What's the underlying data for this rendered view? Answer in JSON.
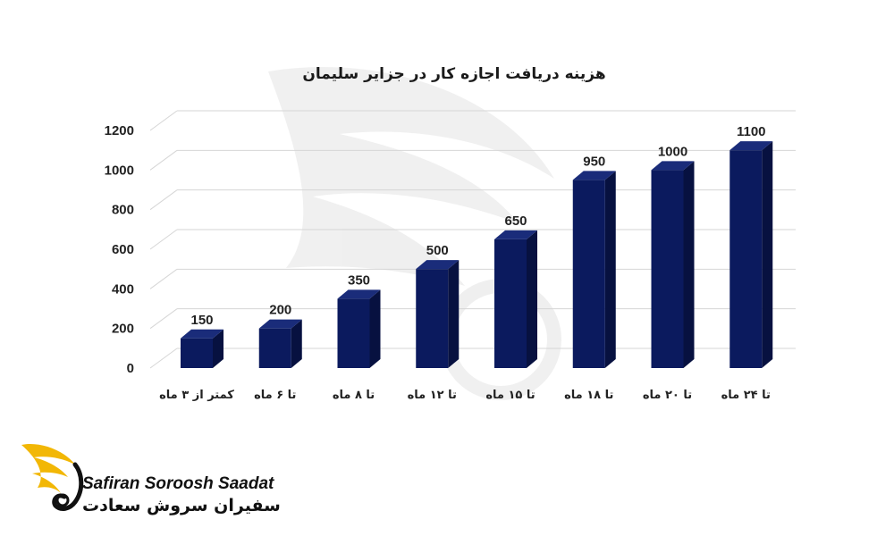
{
  "chart_data": {
    "type": "bar",
    "title": "هزینه دریافت اجازه کار در جزایر سلیمان",
    "categories": [
      "کمتر از ۳ ماه",
      "تا ۶ ماه",
      "تا ۸ ماه",
      "تا ۱۲ ماه",
      "تا ۱۵ ماه",
      "تا ۱۸ ماه",
      "تا ۲۰ ماه",
      "تا ۲۴ ماه"
    ],
    "values": [
      150,
      200,
      350,
      500,
      650,
      950,
      1000,
      1100
    ],
    "yticks": [
      0,
      200,
      400,
      600,
      800,
      1000,
      1200
    ],
    "ylim": [
      0,
      1200
    ],
    "grid": true,
    "bar_color": "#0b1a5e",
    "bar_side_color": "#071140",
    "bar_top_color": "#1a2c7a"
  },
  "brand": {
    "name_latin": "Safiran Soroosh Saadat",
    "name_fa": "سفیران سروش سعادت",
    "accent_color": "#f2b705",
    "icon": "wing-logo-icon"
  }
}
